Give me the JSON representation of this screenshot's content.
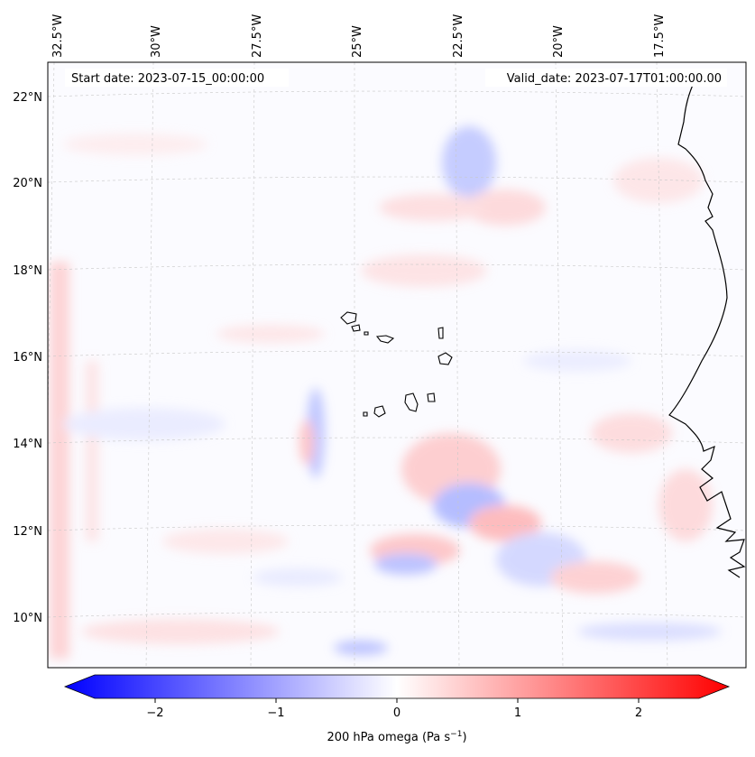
{
  "map": {
    "start_label": "Start date: 2023-07-15_00:00:00",
    "valid_label": "Valid_date: 2023-07-17T01:00:00.00",
    "lon_labels": [
      "32.5°W",
      "30°W",
      "27.5°W",
      "25°W",
      "22.5°W",
      "20°W",
      "17.5°W"
    ],
    "lat_labels": [
      "22°N",
      "20°N",
      "18°N",
      "16°N",
      "14°N",
      "12°N",
      "10°N"
    ],
    "extent": {
      "lon_min": -33.0,
      "lon_max": -15.5,
      "lat_min": 8.8,
      "lat_max": 22.8
    },
    "field": "200 hPa omega",
    "colormap": "bwr",
    "colors": {
      "negative": "#0000ff",
      "zero": "#ffffff",
      "positive": "#ff0000",
      "coast": "#000000",
      "grid": "#c8c8c8"
    }
  },
  "colorbar": {
    "ticks": [
      "−2",
      "−1",
      "0",
      "1",
      "2"
    ],
    "tick_values": [
      -2,
      -1,
      0,
      1,
      2
    ],
    "range": [
      -2.6,
      2.6
    ],
    "label_main": "200 hPa omega (Pa s",
    "label_sup": "−1",
    "label_end": ")"
  }
}
